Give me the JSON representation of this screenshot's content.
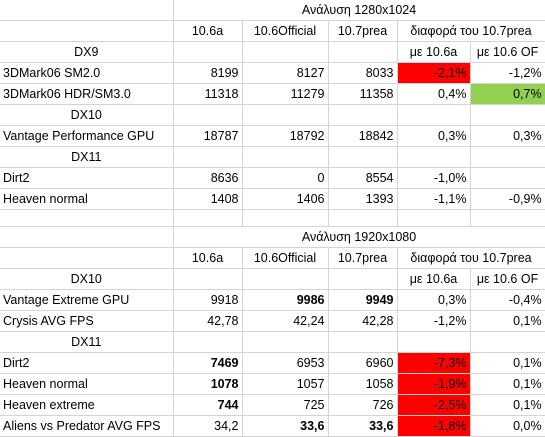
{
  "colors": {
    "highlight_red": "#ff0000",
    "highlight_green": "#92d050",
    "grid": "#d4d4d4"
  },
  "section1": {
    "title": "Ανάλυση 1280x1024",
    "headers": [
      "10.6a",
      "10.6Official",
      "10.7prea",
      "διαφορά του 10.7prea"
    ],
    "groups": {
      "dx9": {
        "label": "DX9",
        "sub1": "με 10.6a",
        "sub2": "με 10.6 OF"
      },
      "dx10": {
        "label": "DX10"
      },
      "dx11": {
        "label": "DX11"
      }
    },
    "rows": [
      {
        "name": "3DMark06 SM2.0",
        "a": "8199",
        "of": "8127",
        "p": "8033",
        "d1": "-2,1%",
        "d2": "-1,2%"
      },
      {
        "name": "3DMark06 HDR/SM3.0",
        "a": "11318",
        "of": "11279",
        "p": "11358",
        "d1": "0,4%",
        "d2": "0,7%"
      },
      {
        "name": "Vantage Performance GPU",
        "a": "18787",
        "of": "18792",
        "p": "18842",
        "d1": "0,3%",
        "d2": "0,3%"
      },
      {
        "name": "Dirt2",
        "a": "8636",
        "of": "0",
        "p": "8554",
        "d1": "-1,0%",
        "d2": ""
      },
      {
        "name": "Heaven normal",
        "a": "1408",
        "of": "1406",
        "p": "1393",
        "d1": "-1,1%",
        "d2": "-0,9%"
      }
    ]
  },
  "section2": {
    "title": "Ανάλυση 1920x1080",
    "headers": [
      "10.6a",
      "10.6Official",
      "10.7prea",
      "διαφορά του 10.7prea"
    ],
    "groups": {
      "dx10": {
        "label": "DX10",
        "sub1": "με 10.6a",
        "sub2": "με 10.6 OF"
      },
      "dx11": {
        "label": "DX11"
      }
    },
    "rows": [
      {
        "name": "Vantage Extreme GPU",
        "a": "9918",
        "of": "9986",
        "p": "9949",
        "d1": "0,3%",
        "d2": "-0,4%"
      },
      {
        "name": "Crysis AVG FPS",
        "a": "42,78",
        "of": "42,24",
        "p": "42,28",
        "d1": "-1,2%",
        "d2": "0,1%"
      },
      {
        "name": "Dirt2",
        "a": "7469",
        "of": "6953",
        "p": "6960",
        "d1": "-7,3%",
        "d2": "0,1%"
      },
      {
        "name": "Heaven normal",
        "a": "1078",
        "of": "1057",
        "p": "1058",
        "d1": "-1,9%",
        "d2": "0,1%"
      },
      {
        "name": "Heaven extreme",
        "a": "744",
        "of": "725",
        "p": "726",
        "d1": "-2,5%",
        "d2": "0,1%"
      },
      {
        "name": "Aliens vs Predator AVG FPS",
        "a": "34,2",
        "of": "33,6",
        "p": "33,6",
        "d1": "-1,8%",
        "d2": "0,0%"
      }
    ]
  }
}
